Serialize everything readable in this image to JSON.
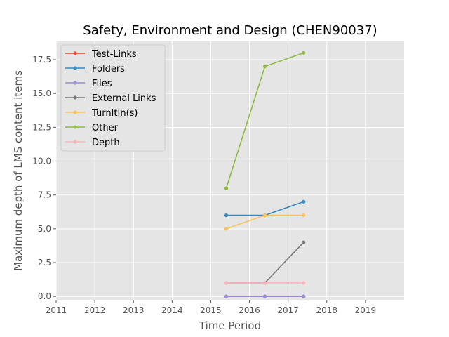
{
  "chart_data": {
    "type": "line",
    "title": "Safety, Environment and Design (CHEN90037)",
    "xlabel": "Time Period",
    "ylabel": "Maximum depth of LMS content items",
    "xlim": [
      2011,
      2020
    ],
    "ylim": [
      -0.3,
      18.9
    ],
    "xticks": [
      "2011",
      "2012",
      "2013",
      "2014",
      "2015",
      "2016",
      "2017",
      "2018",
      "2019"
    ],
    "yticks": [
      "0.0",
      "2.5",
      "5.0",
      "7.5",
      "10.0",
      "12.5",
      "15.0",
      "17.5"
    ],
    "grid": true,
    "legend_position": "top-left",
    "x": [
      2015.4,
      2016.4,
      2017.4
    ],
    "series": [
      {
        "name": "Test-Links",
        "color": "#e24a33",
        "values": [
          0,
          0,
          0
        ]
      },
      {
        "name": "Folders",
        "color": "#348abd",
        "values": [
          6,
          6,
          7
        ]
      },
      {
        "name": "Files",
        "color": "#988ed5",
        "values": [
          0,
          0,
          0
        ]
      },
      {
        "name": "External Links",
        "color": "#777777",
        "values": [
          1,
          1,
          4
        ]
      },
      {
        "name": "TurnItIn(s)",
        "color": "#fbc15e",
        "values": [
          5,
          6,
          6
        ]
      },
      {
        "name": "Other",
        "color": "#8eba42",
        "values": [
          8,
          17,
          18
        ]
      },
      {
        "name": "Depth",
        "color": "#ffb5b8",
        "values": [
          1,
          1,
          1
        ]
      }
    ]
  }
}
